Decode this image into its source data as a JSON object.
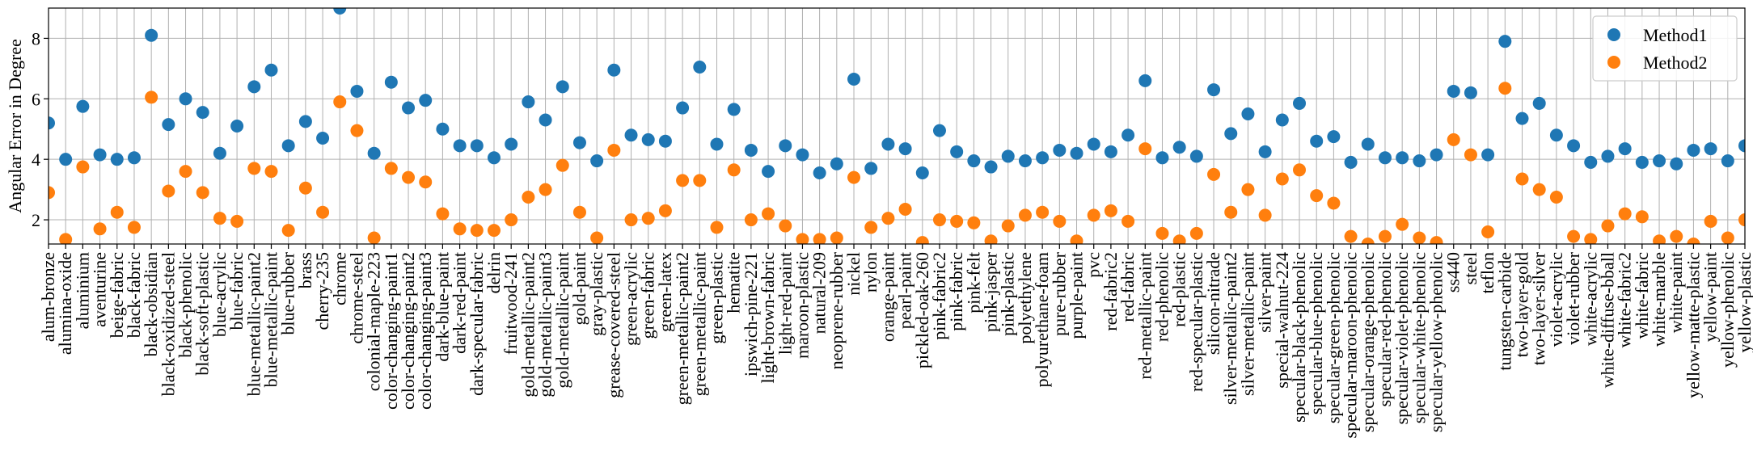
{
  "chart_data": {
    "type": "scatter",
    "ylabel": "Angular Error in Degree",
    "ylim": [
      1.2,
      9.0
    ],
    "yticks": [
      2,
      4,
      6,
      8
    ],
    "grid": true,
    "legend_position": "top-right",
    "categories": [
      "alum-bronze",
      "alumina-oxide",
      "aluminium",
      "aventurine",
      "beige-fabric",
      "black-fabric",
      "black-obsidian",
      "black-oxidized-steel",
      "black-phenolic",
      "black-soft-plastic",
      "blue-acrylic",
      "blue-fabric",
      "blue-metallic-paint2",
      "blue-metallic-paint",
      "blue-rubber",
      "brass",
      "cherry-235",
      "chrome",
      "chrome-steel",
      "colonial-maple-223",
      "color-changing-paint1",
      "color-changing-paint2",
      "color-changing-paint3",
      "dark-blue-paint",
      "dark-red-paint",
      "dark-specular-fabric",
      "delrin",
      "fruitwood-241",
      "gold-metallic-paint2",
      "gold-metallic-paint3",
      "gold-metallic-paint",
      "gold-paint",
      "gray-plastic",
      "grease-covered-steel",
      "green-acrylic",
      "green-fabric",
      "green-latex",
      "green-metallic-paint2",
      "green-metallic-paint",
      "green-plastic",
      "hematite",
      "ipswich-pine-221",
      "light-brown-fabric",
      "light-red-paint",
      "maroon-plastic",
      "natural-209",
      "neoprene-rubber",
      "nickel",
      "nylon",
      "orange-paint",
      "pearl-paint",
      "pickled-oak-260",
      "pink-fabric2",
      "pink-fabric",
      "pink-felt",
      "pink-jasper",
      "pink-plastic",
      "polyethylene",
      "polyurethane-foam",
      "pure-rubber",
      "purple-paint",
      "pvc",
      "red-fabric2",
      "red-fabric",
      "red-metallic-paint",
      "red-phenolic",
      "red-plastic",
      "red-specular-plastic",
      "silicon-nitrade",
      "silver-metallic-paint2",
      "silver-metallic-paint",
      "silver-paint",
      "special-walnut-224",
      "specular-black-phenolic",
      "specular-blue-phenolic",
      "specular-green-phenolic",
      "specular-maroon-phenolic",
      "specular-orange-phenolic",
      "specular-red-phenolic",
      "specular-violet-phenolic",
      "specular-white-phenolic",
      "specular-yellow-phenolic",
      "ss440",
      "steel",
      "teflon",
      "tungsten-carbide",
      "two-layer-gold",
      "two-layer-silver",
      "violet-acrylic",
      "violet-rubber",
      "white-acrylic",
      "white-diffuse-bball",
      "white-fabric2",
      "white-fabric",
      "white-marble",
      "white-paint",
      "yellow-matte-plastic",
      "yellow-paint",
      "yellow-phenolic",
      "yellow-plastic"
    ],
    "series": [
      {
        "name": "Method1",
        "color": "#1f77b4",
        "values": [
          5.2,
          4.0,
          5.75,
          4.15,
          4.0,
          4.05,
          8.1,
          5.15,
          6.0,
          5.55,
          4.2,
          5.1,
          6.4,
          6.95,
          4.45,
          5.25,
          4.7,
          9.0,
          6.25,
          4.2,
          6.55,
          5.7,
          5.95,
          5.0,
          4.45,
          4.45,
          4.05,
          4.5,
          5.9,
          5.3,
          6.4,
          4.55,
          3.95,
          6.95,
          4.8,
          4.65,
          4.6,
          5.7,
          7.05,
          4.5,
          5.65,
          4.3,
          3.6,
          4.45,
          4.15,
          3.55,
          3.85,
          6.65,
          3.7,
          4.5,
          4.35,
          3.55,
          4.95,
          4.25,
          3.95,
          3.75,
          4.1,
          3.95,
          4.05,
          4.3,
          4.2,
          4.5,
          4.25,
          4.8,
          6.6,
          4.05,
          4.4,
          4.1,
          6.3,
          4.85,
          5.5,
          4.25,
          5.3,
          5.85,
          4.6,
          4.75,
          3.9,
          4.5,
          4.05,
          4.05,
          3.95,
          4.15,
          6.25,
          6.2,
          4.15,
          7.9,
          5.35,
          5.85,
          4.8,
          4.45,
          3.9,
          4.1,
          4.35,
          3.9,
          3.95,
          3.85,
          4.3,
          4.35,
          3.95,
          4.45
        ]
      },
      {
        "name": "Method2",
        "color": "#ff7f0e",
        "values": [
          2.9,
          1.35,
          3.75,
          1.7,
          2.25,
          1.75,
          6.05,
          2.95,
          3.6,
          2.9,
          2.05,
          1.95,
          3.7,
          3.6,
          1.65,
          3.05,
          2.25,
          5.9,
          4.95,
          1.4,
          3.7,
          3.4,
          3.25,
          2.2,
          1.7,
          1.65,
          1.65,
          2.0,
          2.75,
          3.0,
          3.8,
          2.25,
          1.4,
          4.3,
          2.0,
          2.05,
          2.3,
          3.3,
          3.3,
          1.75,
          3.65,
          2.0,
          2.2,
          1.8,
          1.35,
          1.35,
          1.4,
          3.4,
          1.75,
          2.05,
          2.35,
          1.25,
          2.0,
          1.95,
          1.9,
          1.3,
          1.8,
          2.15,
          2.25,
          1.95,
          1.3,
          2.15,
          2.3,
          1.95,
          4.35,
          1.55,
          1.3,
          1.55,
          3.5,
          2.25,
          3.0,
          2.15,
          3.35,
          3.65,
          2.8,
          2.55,
          1.45,
          1.2,
          1.45,
          1.85,
          1.4,
          1.25,
          4.65,
          4.15,
          1.6,
          6.35,
          3.35,
          3.0,
          2.75,
          1.45,
          1.35,
          1.8,
          2.2,
          2.1,
          1.3,
          1.45,
          1.2,
          1.95,
          1.4,
          2.0
        ]
      }
    ]
  }
}
